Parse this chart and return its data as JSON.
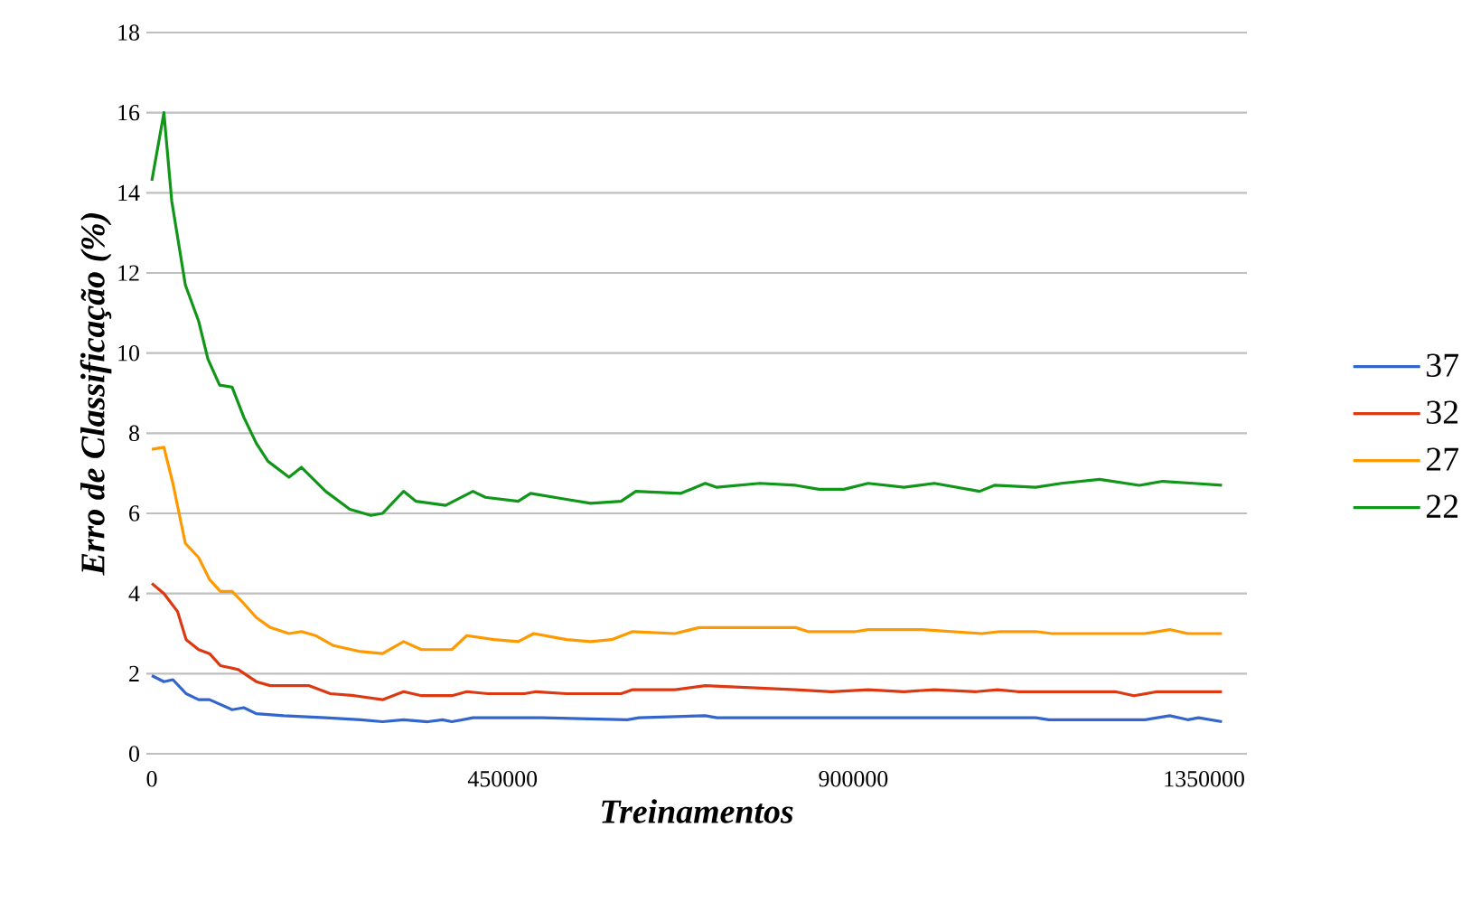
{
  "chart_data": {
    "type": "line",
    "xlabel": "Treinamentos",
    "ylabel": "Erro de Classificação (%)",
    "xlim": [
      -7000,
      1405000
    ],
    "xticks": [
      0,
      450000,
      900000,
      1350000
    ],
    "ylim": [
      0,
      18
    ],
    "yticks": [
      0,
      2,
      4,
      6,
      8,
      10,
      12,
      14,
      16,
      18
    ],
    "grid": "y",
    "legend": "right",
    "line_style": "solid",
    "series": [
      {
        "name": "37",
        "color": "#3366cc",
        "x": [
          0,
          15500,
          27000,
          44000,
          60000,
          74000,
          103000,
          118000,
          134000,
          169000,
          223000,
          268000,
          296000,
          323000,
          354000,
          373000,
          385000,
          412000,
          501000,
          610000,
          625000,
          710000,
          725000,
          826000,
          1134000,
          1151000,
          1220000,
          1274000,
          1306000,
          1329000,
          1343000,
          1373000
        ],
        "values": [
          1.95,
          1.8,
          1.85,
          1.5,
          1.35,
          1.35,
          1.1,
          1.15,
          1.0,
          0.95,
          0.9,
          0.85,
          0.8,
          0.85,
          0.8,
          0.85,
          0.8,
          0.9,
          0.9,
          0.85,
          0.9,
          0.95,
          0.9,
          0.9,
          0.9,
          0.85,
          0.85,
          0.85,
          0.95,
          0.85,
          0.9,
          0.8
        ]
      },
      {
        "name": "32",
        "color": "#dc3912",
        "x": [
          0,
          15500,
          33000,
          44000,
          60000,
          74000,
          88000,
          111000,
          134000,
          152000,
          202000,
          229000,
          260000,
          296000,
          323000,
          346000,
          385000,
          404000,
          431000,
          478000,
          493000,
          532000,
          602000,
          617000,
          671000,
          710000,
          826000,
          872000,
          919000,
          965000,
          1004000,
          1058000,
          1085000,
          1111000,
          1236000,
          1260000,
          1290000,
          1373000
        ],
        "values": [
          4.25,
          4.0,
          3.55,
          2.85,
          2.6,
          2.5,
          2.2,
          2.1,
          1.8,
          1.7,
          1.7,
          1.5,
          1.45,
          1.35,
          1.55,
          1.45,
          1.45,
          1.55,
          1.5,
          1.5,
          1.55,
          1.5,
          1.5,
          1.6,
          1.6,
          1.7,
          1.6,
          1.55,
          1.6,
          1.55,
          1.6,
          1.55,
          1.6,
          1.55,
          1.55,
          1.45,
          1.55,
          1.55
        ]
      },
      {
        "name": "27",
        "color": "#ff9900",
        "x": [
          0,
          15500,
          27000,
          43000,
          60000,
          74000,
          88000,
          103000,
          118000,
          134000,
          152000,
          176000,
          192000,
          210000,
          233000,
          268000,
          296000,
          323000,
          346000,
          385000,
          404000,
          439000,
          470000,
          490000,
          532000,
          563000,
          590000,
          617000,
          671000,
          702000,
          826000,
          842000,
          903000,
          919000,
          988000,
          1065000,
          1088000,
          1134000,
          1155000,
          1204000,
          1274000,
          1306000,
          1329000,
          1373000
        ],
        "values": [
          7.6,
          7.65,
          6.75,
          5.25,
          4.9,
          4.35,
          4.05,
          4.05,
          3.75,
          3.4,
          3.15,
          3.0,
          3.05,
          2.95,
          2.7,
          2.55,
          2.5,
          2.8,
          2.6,
          2.6,
          2.95,
          2.85,
          2.8,
          3.0,
          2.85,
          2.8,
          2.85,
          3.05,
          3.0,
          3.15,
          3.15,
          3.05,
          3.05,
          3.1,
          3.1,
          3.0,
          3.05,
          3.05,
          3.0,
          3.0,
          3.0,
          3.1,
          3.0,
          3.0
        ]
      },
      {
        "name": "22",
        "color": "#109618",
        "x": [
          0,
          15500,
          25500,
          43000,
          60000,
          72000,
          87000,
          103000,
          118000,
          134000,
          149000,
          176000,
          192000,
          223000,
          254000,
          281000,
          296000,
          323000,
          339000,
          377000,
          412000,
          428000,
          470000,
          486000,
          532000,
          563000,
          602000,
          621000,
          679000,
          710000,
          725000,
          780000,
          826000,
          856000,
          888000,
          919000,
          965000,
          1004000,
          1062000,
          1081000,
          1134000,
          1167000,
          1216000,
          1267000,
          1297000,
          1336000,
          1373000
        ],
        "values": [
          14.3,
          16.0,
          13.8,
          11.7,
          10.8,
          9.85,
          9.2,
          9.15,
          8.4,
          7.75,
          7.3,
          6.9,
          7.15,
          6.55,
          6.1,
          5.95,
          6.0,
          6.55,
          6.3,
          6.2,
          6.55,
          6.4,
          6.3,
          6.5,
          6.35,
          6.25,
          6.3,
          6.55,
          6.5,
          6.75,
          6.65,
          6.75,
          6.7,
          6.6,
          6.6,
          6.75,
          6.65,
          6.75,
          6.55,
          6.7,
          6.65,
          6.75,
          6.85,
          6.7,
          6.8,
          6.75,
          6.7
        ]
      }
    ]
  }
}
